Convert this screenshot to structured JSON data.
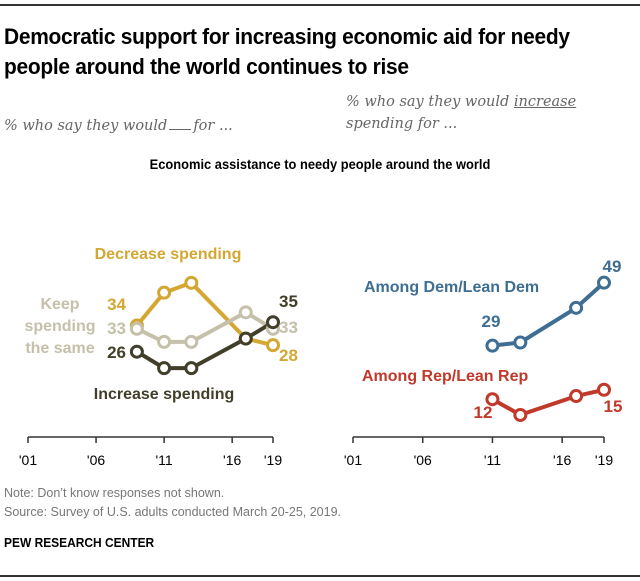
{
  "header": {
    "title": "Democratic support for increasing economic aid for needy people around the world continues to rise",
    "subtitle_left_prefix": "% who say they would",
    "subtitle_left_suffix": "for ...",
    "subtitle_right_prefix": "% who say they would",
    "subtitle_right_emph": "increase",
    "subtitle_right_suffix": "spending for ...",
    "chart_title": "Economic assistance to needy people around the world"
  },
  "footer": {
    "note": "Note: Don’t know responses not shown.",
    "source": "Source: Survey of U.S. adults conducted March 20-25, 2019.",
    "brand": "PEW RESEARCH CENTER"
  },
  "colors": {
    "decrease": "#D4A733",
    "keep": "#C5C0AA",
    "increase": "#413E2A",
    "dem": "#3F6E93",
    "rep": "#C0392B",
    "axis": "#333333"
  },
  "chart_data": [
    {
      "type": "line",
      "title": "% who say they would __ for ...",
      "xlabel": "",
      "ylabel": "",
      "x_ticks": [
        "'01",
        "'06",
        "'11",
        "'16",
        "'19"
      ],
      "x_tick_years": [
        2001,
        2006,
        2011,
        2016,
        2019
      ],
      "xlim": [
        2001,
        2019
      ],
      "ylim": [
        0,
        50
      ],
      "grid": false,
      "x": [
        2009,
        2011,
        2013,
        2017,
        2019
      ],
      "series": [
        {
          "name": "Decrease spending",
          "key": "decrease",
          "legend_label": [
            "Decrease spending"
          ],
          "values": [
            34,
            44,
            47,
            30,
            28
          ],
          "first_label": "34",
          "last_label": "28"
        },
        {
          "name": "Keep spending the same",
          "key": "keep",
          "legend_label": [
            "Keep",
            "spending",
            "the same"
          ],
          "values": [
            33,
            29,
            29,
            38,
            33
          ],
          "first_label": "33",
          "last_label": "33"
        },
        {
          "name": "Increase spending",
          "key": "increase",
          "legend_label": [
            "Increase spending"
          ],
          "values": [
            26,
            21,
            21,
            30,
            35
          ],
          "first_label": "26",
          "last_label": "35"
        }
      ]
    },
    {
      "type": "line",
      "title": "% who say they would increase spending for ...",
      "xlabel": "",
      "ylabel": "",
      "x_ticks": [
        "'01",
        "'06",
        "'11",
        "'16",
        "'19"
      ],
      "x_tick_years": [
        2001,
        2006,
        2011,
        2016,
        2019
      ],
      "xlim": [
        2001,
        2019
      ],
      "ylim": [
        0,
        50
      ],
      "grid": false,
      "x": [
        2011,
        2013,
        2017,
        2019
      ],
      "series": [
        {
          "name": "Among Dem/Lean Dem",
          "key": "dem",
          "legend_label": [
            "Among Dem/Lean Dem"
          ],
          "values": [
            29,
            30,
            41,
            49
          ],
          "first_label": "29",
          "last_label": "49"
        },
        {
          "name": "Among Rep/Lean Rep",
          "key": "rep",
          "legend_label": [
            "Among Rep/Lean Rep"
          ],
          "values": [
            12,
            7,
            13,
            15
          ],
          "first_label": "12",
          "last_label": "15"
        }
      ]
    }
  ]
}
